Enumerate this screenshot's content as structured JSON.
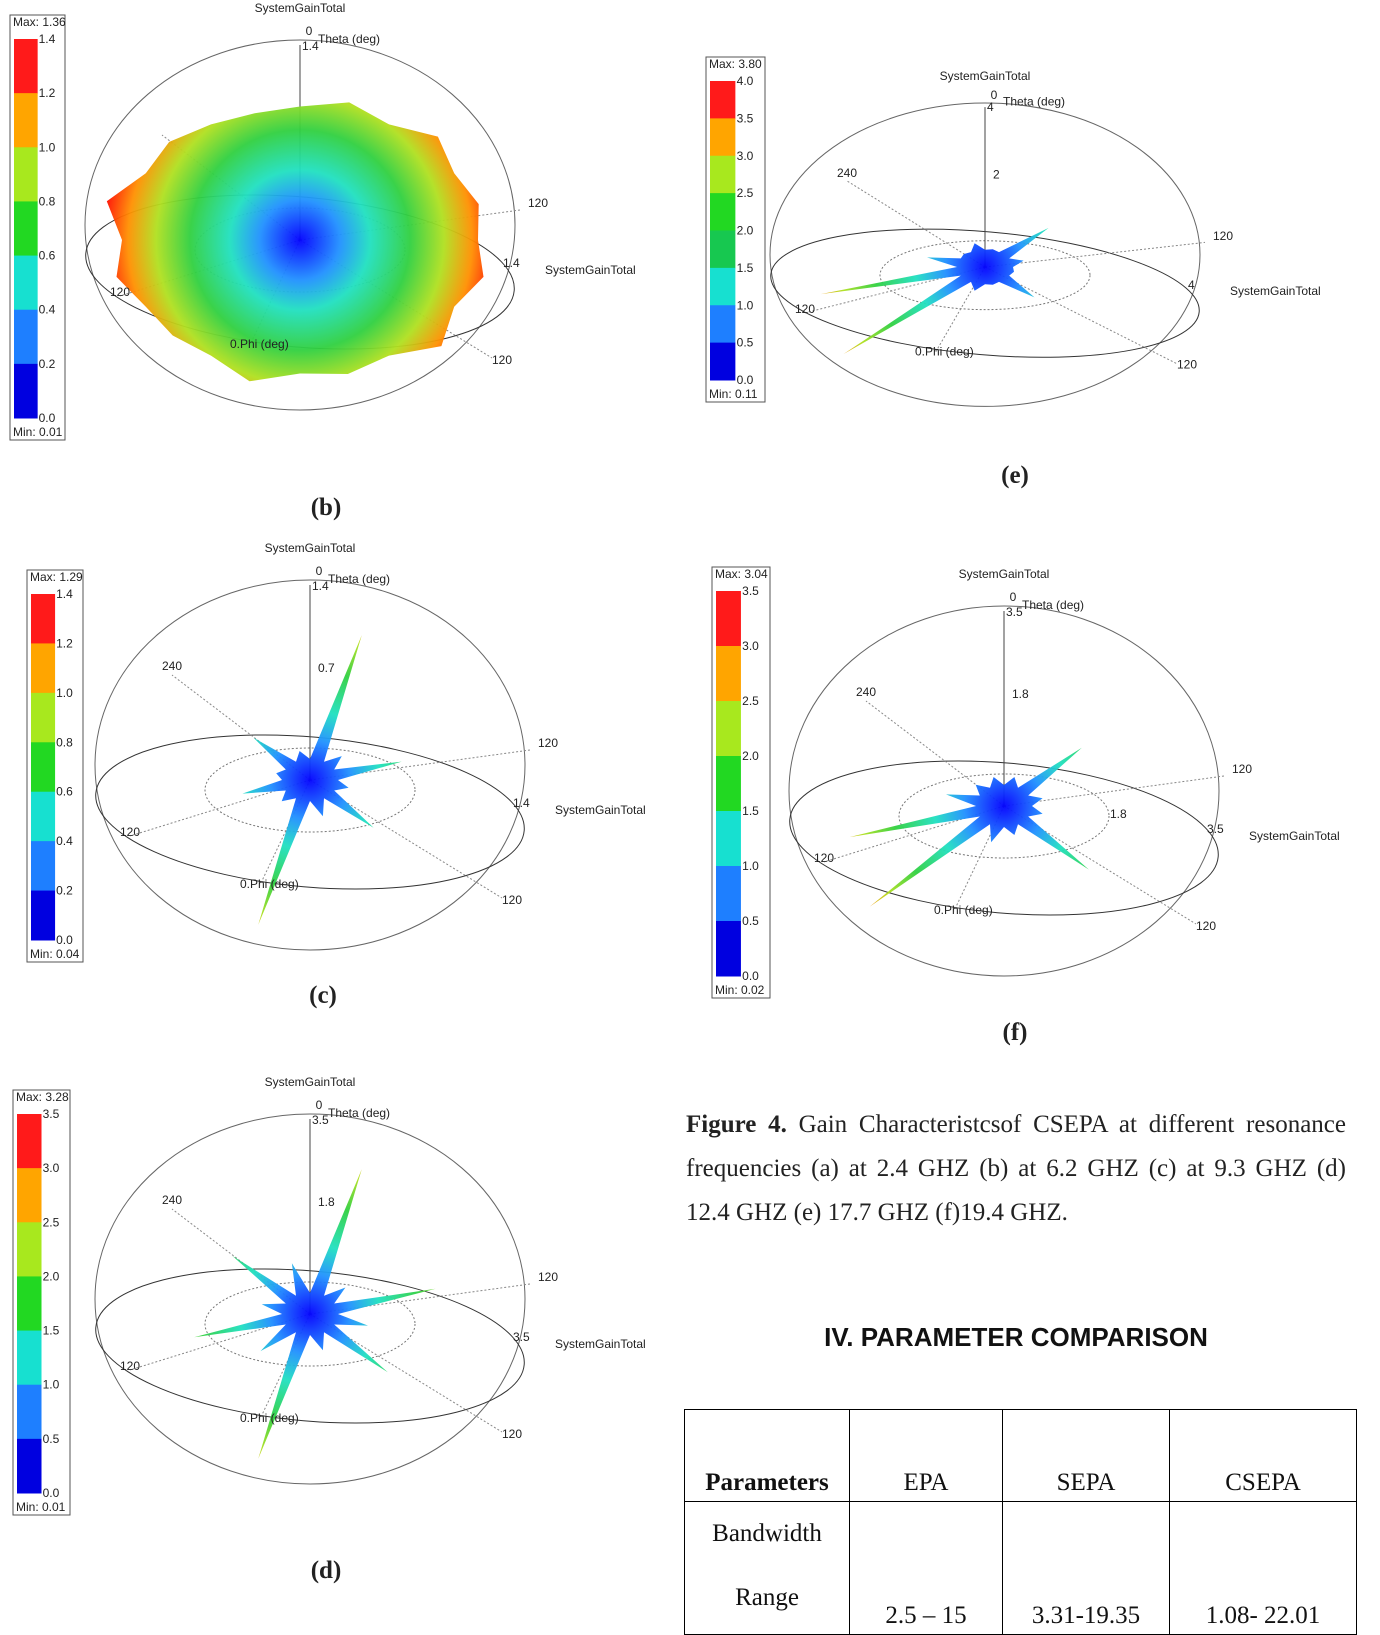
{
  "panels": [
    {
      "label": "(b)",
      "max": "Max: 1.36",
      "min": "Min: 0.01",
      "scale": [
        "1.4",
        "1.2",
        "1.0",
        "0.8",
        "0.6",
        "0.4",
        "0.2",
        "0.0"
      ],
      "plot": {
        "title": "SystemGainTotal",
        "zero": "0",
        "theta": "Theta (deg)",
        "r_top": "1.4",
        "right_120": "120",
        "r_right": "1.4",
        "side_title": "SystemGainTotal",
        "left_120": "120",
        "phi": "0.Phi (deg)",
        "bottom_120": "120"
      }
    },
    {
      "label": "(c)",
      "max": "Max: 1.29",
      "min": "Min: 0.04",
      "scale": [
        "1.4",
        "1.2",
        "1.0",
        "0.8",
        "0.6",
        "0.4",
        "0.2",
        "0.0"
      ],
      "plot": {
        "title": "SystemGainTotal",
        "zero": "0",
        "theta": "Theta (deg)",
        "r_top": "1.4",
        "phi_240": "240",
        "r_mid": "0.7",
        "right_120": "120",
        "r_right": "1.4",
        "side_title": "SystemGainTotal",
        "left_120": "120",
        "phi": "0.Phi (deg)",
        "bottom_120": "120"
      }
    },
    {
      "label": "(d)",
      "max": "Max: 3.28",
      "min": "Min: 0.01",
      "scale": [
        "3.5",
        "3.0",
        "2.5",
        "2.0",
        "1.5",
        "1.0",
        "0.5",
        "0.0"
      ],
      "plot": {
        "title": "SystemGainTotal",
        "zero": "0",
        "theta": "Theta (deg)",
        "r_top": "3.5",
        "phi_240": "240",
        "r_mid": "1.8",
        "right_120": "120",
        "r_right": "3.5",
        "side_title": "SystemGainTotal",
        "left_120": "120",
        "phi": "0.Phi (deg)",
        "bottom_120": "120"
      }
    },
    {
      "label": "(e)",
      "max": "Max: 3.80",
      "min": "Min: 0.11",
      "scale": [
        "4.0",
        "3.5",
        "3.0",
        "2.5",
        "2.0",
        "1.5",
        "1.0",
        "0.5",
        "0.0"
      ],
      "plot": {
        "title": "SystemGainTotal",
        "zero": "0",
        "theta": "Theta (deg)",
        "r_top": "4",
        "phi_240": "240",
        "r_mid": "2",
        "right_120": "120",
        "r_right": "4",
        "side_title": "SystemGainTotal",
        "left_120": "120",
        "phi": "0.Phi (deg)",
        "bottom_120": "120"
      }
    },
    {
      "label": "(f)",
      "max": "Max: 3.04",
      "min": "Min: 0.02",
      "scale": [
        "3.5",
        "3.0",
        "2.5",
        "2.0",
        "1.5",
        "1.0",
        "0.5",
        "0.0"
      ],
      "plot": {
        "title": "SystemGainTotal",
        "zero": "0",
        "theta": "Theta (deg)",
        "r_top": "3.5",
        "phi_240": "240",
        "r_mid": "1.8",
        "r_mid2": "1.8",
        "right_120": "120",
        "r_right": "3.5",
        "side_title": "SystemGainTotal",
        "left_120": "120",
        "phi": "0.Phi (deg)",
        "bottom_120": "120"
      }
    }
  ],
  "caption": {
    "label": "Figure 4.",
    "text": "Gain Characteristcsof CSEPA at different resonance frequencies (a) at 2.4 GHZ (b) at 6.2 GHZ (c) at 9.3 GHZ (d) 12.4 GHZ (e) 17.7 GHZ (f)19.4 GHZ."
  },
  "section": {
    "heading": "IV. PARAMETER COMPARISON"
  },
  "table": {
    "header": [
      "Parameters",
      "EPA",
      "SEPA",
      "CSEPA"
    ],
    "rows": [
      [
        "Bandwidth Range",
        "2.5 – 15",
        "3.31-19.35",
        "1.08- 22.01"
      ]
    ]
  }
}
